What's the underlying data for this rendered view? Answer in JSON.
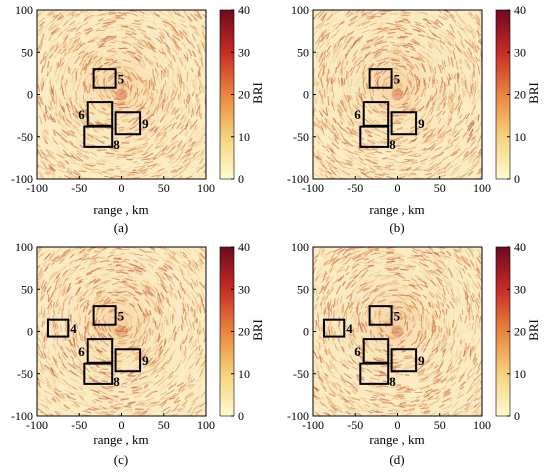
{
  "figure": {
    "panels": [
      {
        "caption": "(a)",
        "xlabel": "range , km",
        "cbar_label": "BRI"
      },
      {
        "caption": "(b)",
        "xlabel": "range , km",
        "cbar_label": "BRI"
      },
      {
        "caption": "(c)",
        "xlabel": "range , km",
        "cbar_label": "BRI"
      },
      {
        "caption": "(d)",
        "xlabel": "range , km",
        "cbar_label": "BRI"
      }
    ]
  },
  "chart_data": [
    {
      "type": "heatmap",
      "title": "",
      "caption": "(a)",
      "xlabel": "range , km",
      "ylabel": "",
      "xlim": [
        -100,
        100
      ],
      "ylim": [
        -100,
        100
      ],
      "xticks": [
        -100,
        -50,
        0,
        50,
        100
      ],
      "yticks": [
        -100,
        -50,
        0,
        50,
        100
      ],
      "colorbar": {
        "label": "BRI",
        "range": [
          0,
          40
        ],
        "ticks": [
          0,
          10,
          20,
          30,
          40
        ],
        "colors": [
          "#fffbd0",
          "#f6d27c",
          "#e9853e",
          "#c62c26",
          "#6e0a1e"
        ]
      },
      "regions": [
        {
          "label": "5",
          "x": [
            -33,
            -7
          ],
          "y": [
            8,
            30
          ]
        },
        {
          "label": "6",
          "x": [
            -40,
            -11
          ],
          "y": [
            -37,
            -9
          ]
        },
        {
          "label": "8",
          "x": [
            -44,
            -11
          ],
          "y": [
            -62,
            -38
          ]
        },
        {
          "label": "9",
          "x": [
            -7,
            22
          ],
          "y": [
            -47,
            -21
          ]
        }
      ]
    },
    {
      "type": "heatmap",
      "title": "",
      "caption": "(b)",
      "xlabel": "range , km",
      "ylabel": "",
      "xlim": [
        -100,
        100
      ],
      "ylim": [
        -100,
        100
      ],
      "xticks": [
        -100,
        -50,
        0,
        50,
        100
      ],
      "yticks": [
        -100,
        -50,
        0,
        50,
        100
      ],
      "colorbar": {
        "label": "BRI",
        "range": [
          0,
          40
        ],
        "ticks": [
          0,
          10,
          20,
          30,
          40
        ],
        "colors": [
          "#fffbd0",
          "#f6d27c",
          "#e9853e",
          "#c62c26",
          "#6e0a1e"
        ]
      },
      "regions": [
        {
          "label": "5",
          "x": [
            -33,
            -7
          ],
          "y": [
            8,
            30
          ]
        },
        {
          "label": "6",
          "x": [
            -40,
            -11
          ],
          "y": [
            -37,
            -9
          ]
        },
        {
          "label": "8",
          "x": [
            -44,
            -11
          ],
          "y": [
            -62,
            -38
          ]
        },
        {
          "label": "9",
          "x": [
            -7,
            22
          ],
          "y": [
            -47,
            -21
          ]
        }
      ]
    },
    {
      "type": "heatmap",
      "title": "",
      "caption": "(c)",
      "xlabel": "range , km",
      "ylabel": "",
      "xlim": [
        -100,
        100
      ],
      "ylim": [
        -100,
        100
      ],
      "xticks": [
        -100,
        -50,
        0,
        50,
        100
      ],
      "yticks": [
        -100,
        -50,
        0,
        50,
        100
      ],
      "colorbar": {
        "label": "BRI",
        "range": [
          0,
          40
        ],
        "ticks": [
          0,
          10,
          20,
          30,
          40
        ],
        "colors": [
          "#fffbd0",
          "#f6d27c",
          "#e9853e",
          "#c62c26",
          "#6e0a1e"
        ]
      },
      "regions": [
        {
          "label": "4",
          "x": [
            -87,
            -63
          ],
          "y": [
            -6,
            14
          ]
        },
        {
          "label": "5",
          "x": [
            -33,
            -7
          ],
          "y": [
            8,
            30
          ]
        },
        {
          "label": "6",
          "x": [
            -40,
            -11
          ],
          "y": [
            -37,
            -9
          ]
        },
        {
          "label": "8",
          "x": [
            -44,
            -11
          ],
          "y": [
            -62,
            -38
          ]
        },
        {
          "label": "9",
          "x": [
            -7,
            22
          ],
          "y": [
            -47,
            -21
          ]
        }
      ]
    },
    {
      "type": "heatmap",
      "title": "",
      "caption": "(d)",
      "xlabel": "range , km",
      "ylabel": "",
      "xlim": [
        -100,
        100
      ],
      "ylim": [
        -100,
        100
      ],
      "xticks": [
        -100,
        -50,
        0,
        50,
        100
      ],
      "yticks": [
        -100,
        -50,
        0,
        50,
        100
      ],
      "colorbar": {
        "label": "BRI",
        "range": [
          0,
          40
        ],
        "ticks": [
          0,
          10,
          20,
          30,
          40
        ],
        "colors": [
          "#fffbd0",
          "#f6d27c",
          "#e9853e",
          "#c62c26",
          "#6e0a1e"
        ]
      },
      "regions": [
        {
          "label": "4",
          "x": [
            -87,
            -63
          ],
          "y": [
            -6,
            14
          ]
        },
        {
          "label": "5",
          "x": [
            -33,
            -7
          ],
          "y": [
            8,
            30
          ]
        },
        {
          "label": "6",
          "x": [
            -40,
            -11
          ],
          "y": [
            -37,
            -9
          ]
        },
        {
          "label": "8",
          "x": [
            -44,
            -11
          ],
          "y": [
            -62,
            -38
          ]
        },
        {
          "label": "9",
          "x": [
            -7,
            22
          ],
          "y": [
            -47,
            -21
          ]
        }
      ]
    }
  ]
}
